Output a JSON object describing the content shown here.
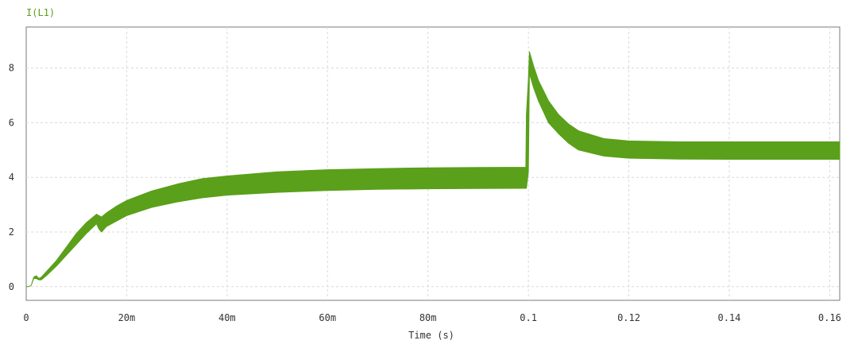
{
  "chart_data": {
    "type": "area",
    "title": "",
    "xlabel": "Time (s)",
    "ylabel": "",
    "xlim": [
      0,
      0.162
    ],
    "ylim": [
      -0.5,
      9.5
    ],
    "grid": true,
    "x_ticks": [
      {
        "value": 0,
        "label": "0"
      },
      {
        "value": 0.02,
        "label": "20m"
      },
      {
        "value": 0.04,
        "label": "40m"
      },
      {
        "value": 0.06,
        "label": "60m"
      },
      {
        "value": 0.08,
        "label": "80m"
      },
      {
        "value": 0.1,
        "label": "0.1"
      },
      {
        "value": 0.12,
        "label": "0.12"
      },
      {
        "value": 0.14,
        "label": "0.14"
      },
      {
        "value": 0.16,
        "label": "0.16"
      }
    ],
    "y_ticks": [
      {
        "value": 0,
        "label": "0"
      },
      {
        "value": 2,
        "label": "2"
      },
      {
        "value": 4,
        "label": "4"
      },
      {
        "value": 6,
        "label": "6"
      },
      {
        "value": 8,
        "label": "8"
      }
    ],
    "series": [
      {
        "name": "I(L1)",
        "color": "#5aa01a",
        "x": [
          0,
          0.0005,
          0.001,
          0.0015,
          0.002,
          0.0025,
          0.003,
          0.004,
          0.006,
          0.008,
          0.01,
          0.012,
          0.014,
          0.0145,
          0.015,
          0.016,
          0.018,
          0.02,
          0.025,
          0.03,
          0.035,
          0.04,
          0.05,
          0.06,
          0.07,
          0.08,
          0.09,
          0.0995,
          0.0996,
          0.1,
          0.1002,
          0.101,
          0.102,
          0.104,
          0.106,
          0.108,
          0.11,
          0.115,
          0.12,
          0.13,
          0.14,
          0.15,
          0.162
        ],
        "upper": [
          0,
          0,
          0.05,
          0.35,
          0.4,
          0.3,
          0.35,
          0.55,
          0.95,
          1.45,
          1.95,
          2.35,
          2.65,
          2.6,
          2.55,
          2.7,
          2.95,
          3.15,
          3.5,
          3.75,
          3.95,
          4.05,
          4.2,
          4.28,
          4.32,
          4.35,
          4.36,
          4.37,
          6.3,
          7.6,
          8.6,
          8.1,
          7.55,
          6.8,
          6.3,
          5.95,
          5.7,
          5.42,
          5.33,
          5.3,
          5.3,
          5.3,
          5.3
        ],
        "lower": [
          0,
          0,
          0.05,
          0.3,
          0.3,
          0.25,
          0.25,
          0.4,
          0.75,
          1.15,
          1.55,
          1.95,
          2.3,
          2.1,
          2.0,
          2.2,
          2.4,
          2.6,
          2.9,
          3.1,
          3.25,
          3.35,
          3.45,
          3.52,
          3.56,
          3.58,
          3.59,
          3.6,
          3.6,
          4.2,
          7.8,
          7.3,
          6.8,
          6.0,
          5.6,
          5.25,
          5.0,
          4.78,
          4.7,
          4.67,
          4.66,
          4.66,
          4.66
        ]
      }
    ]
  }
}
